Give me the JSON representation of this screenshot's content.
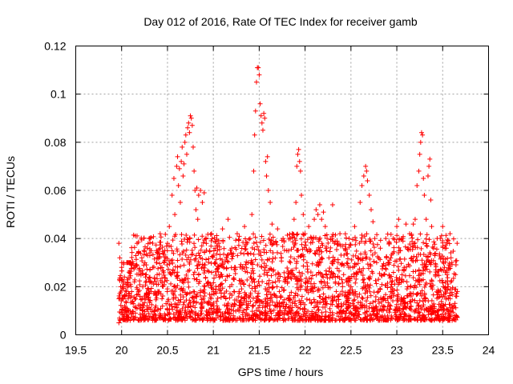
{
  "chart_data": {
    "type": "scatter",
    "title": "Day 012 of 2016, Rate Of TEC Index for receiver gamb",
    "xlabel": "GPS time / hours",
    "ylabel": "ROTI / TECUs",
    "xlim": [
      19.5,
      24
    ],
    "ylim": [
      0,
      0.12
    ],
    "xticks": [
      19.5,
      20,
      20.5,
      21,
      21.5,
      22,
      22.5,
      23,
      23.5,
      24
    ],
    "xtick_labels": [
      "19.5",
      "20",
      "20.5",
      "21",
      "21.5",
      "22",
      "22.5",
      "23",
      "23.5",
      "24"
    ],
    "yticks": [
      0,
      0.02,
      0.04,
      0.06,
      0.08,
      0.1,
      0.12
    ],
    "ytick_labels": [
      "0",
      "0.02",
      "0.04",
      "0.06",
      "0.08",
      "0.1",
      "0.12"
    ],
    "grid": true,
    "marker": "+",
    "series": [
      {
        "name": "ROTI",
        "color": "#ff0000",
        "points": [
          [
            19.97,
            0.038
          ],
          [
            19.97,
            0.005
          ],
          [
            19.98,
            0.032
          ],
          [
            19.99,
            0.02
          ],
          [
            20.0,
            0.028
          ],
          [
            20.02,
            0.015
          ],
          [
            20.03,
            0.024
          ],
          [
            20.05,
            0.018
          ],
          [
            20.06,
            0.011
          ],
          [
            20.08,
            0.026
          ],
          [
            20.1,
            0.03
          ],
          [
            20.12,
            0.014
          ],
          [
            20.14,
            0.022
          ],
          [
            20.15,
            0.009
          ],
          [
            20.17,
            0.019
          ],
          [
            20.19,
            0.027
          ],
          [
            20.2,
            0.016
          ],
          [
            20.22,
            0.032
          ],
          [
            20.24,
            0.012
          ],
          [
            20.26,
            0.024
          ],
          [
            20.28,
            0.036
          ],
          [
            20.3,
            0.04
          ],
          [
            20.32,
            0.018
          ],
          [
            20.34,
            0.028
          ],
          [
            20.36,
            0.01
          ],
          [
            20.38,
            0.035
          ],
          [
            20.4,
            0.021
          ],
          [
            20.42,
            0.042
          ],
          [
            20.44,
            0.015
          ],
          [
            20.46,
            0.03
          ],
          [
            20.48,
            0.008
          ],
          [
            20.5,
            0.038
          ],
          [
            20.52,
            0.045
          ],
          [
            20.54,
            0.025
          ],
          [
            20.55,
            0.058
          ],
          [
            20.57,
            0.065
          ],
          [
            20.58,
            0.05
          ],
          [
            20.6,
            0.07
          ],
          [
            20.61,
            0.074
          ],
          [
            20.62,
            0.062
          ],
          [
            20.63,
            0.069
          ],
          [
            20.64,
            0.055
          ],
          [
            20.65,
            0.072
          ],
          [
            20.66,
            0.078
          ],
          [
            20.67,
            0.066
          ],
          [
            20.68,
            0.071
          ],
          [
            20.69,
            0.08
          ],
          [
            20.7,
            0.083
          ],
          [
            20.71,
            0.075
          ],
          [
            20.72,
            0.086
          ],
          [
            20.73,
            0.088
          ],
          [
            20.74,
            0.084
          ],
          [
            20.75,
            0.091
          ],
          [
            20.76,
            0.09
          ],
          [
            20.77,
            0.087
          ],
          [
            20.78,
            0.078
          ],
          [
            20.79,
            0.068
          ],
          [
            20.8,
            0.06
          ],
          [
            20.81,
            0.052
          ],
          [
            20.82,
            0.061
          ],
          [
            20.83,
            0.048
          ],
          [
            20.84,
            0.058
          ],
          [
            20.86,
            0.06
          ],
          [
            20.88,
            0.055
          ],
          [
            20.9,
            0.059
          ],
          [
            20.92,
            0.04
          ],
          [
            20.94,
            0.022
          ],
          [
            20.96,
            0.035
          ],
          [
            20.98,
            0.042
          ],
          [
            21.0,
            0.018
          ],
          [
            21.02,
            0.03
          ],
          [
            21.04,
            0.012
          ],
          [
            21.06,
            0.038
          ],
          [
            21.08,
            0.025
          ],
          [
            21.1,
            0.044
          ],
          [
            21.12,
            0.016
          ],
          [
            21.14,
            0.032
          ],
          [
            21.16,
            0.048
          ],
          [
            21.18,
            0.02
          ],
          [
            21.2,
            0.036
          ],
          [
            21.22,
            0.01
          ],
          [
            21.24,
            0.028
          ],
          [
            21.26,
            0.042
          ],
          [
            21.28,
            0.018
          ],
          [
            21.3,
            0.034
          ],
          [
            21.32,
            0.022
          ],
          [
            21.34,
            0.045
          ],
          [
            21.36,
            0.014
          ],
          [
            21.38,
            0.03
          ],
          [
            21.4,
            0.04
          ],
          [
            21.42,
            0.05
          ],
          [
            21.44,
            0.068
          ],
          [
            21.45,
            0.083
          ],
          [
            21.46,
            0.093
          ],
          [
            21.47,
            0.105
          ],
          [
            21.48,
            0.111
          ],
          [
            21.49,
            0.111
          ],
          [
            21.5,
            0.108
          ],
          [
            21.51,
            0.096
          ],
          [
            21.52,
            0.091
          ],
          [
            21.53,
            0.088
          ],
          [
            21.54,
            0.085
          ],
          [
            21.55,
            0.092
          ],
          [
            21.56,
            0.09
          ],
          [
            21.57,
            0.072
          ],
          [
            21.58,
            0.066
          ],
          [
            21.59,
            0.074
          ],
          [
            21.6,
            0.06
          ],
          [
            21.62,
            0.055
          ],
          [
            21.64,
            0.046
          ],
          [
            21.66,
            0.038
          ],
          [
            21.68,
            0.025
          ],
          [
            21.7,
            0.044
          ],
          [
            21.72,
            0.018
          ],
          [
            21.74,
            0.032
          ],
          [
            21.76,
            0.04
          ],
          [
            21.78,
            0.022
          ],
          [
            21.8,
            0.035
          ],
          [
            21.82,
            0.015
          ],
          [
            21.84,
            0.03
          ],
          [
            21.86,
            0.042
          ],
          [
            21.88,
            0.048
          ],
          [
            21.9,
            0.055
          ],
          [
            21.91,
            0.07
          ],
          [
            21.92,
            0.075
          ],
          [
            21.93,
            0.077
          ],
          [
            21.94,
            0.072
          ],
          [
            21.95,
            0.068
          ],
          [
            21.96,
            0.058
          ],
          [
            21.98,
            0.05
          ],
          [
            22.0,
            0.042
          ],
          [
            22.02,
            0.03
          ],
          [
            22.04,
            0.045
          ],
          [
            22.06,
            0.035
          ],
          [
            22.08,
            0.02
          ],
          [
            22.1,
            0.048
          ],
          [
            22.12,
            0.052
          ],
          [
            22.14,
            0.05
          ],
          [
            22.16,
            0.054
          ],
          [
            22.18,
            0.048
          ],
          [
            22.2,
            0.051
          ],
          [
            22.22,
            0.045
          ],
          [
            22.24,
            0.04
          ],
          [
            22.26,
            0.032
          ],
          [
            22.28,
            0.025
          ],
          [
            22.3,
            0.054
          ],
          [
            22.32,
            0.038
          ],
          [
            22.34,
            0.018
          ],
          [
            22.36,
            0.03
          ],
          [
            22.38,
            0.042
          ],
          [
            22.4,
            0.012
          ],
          [
            22.42,
            0.025
          ],
          [
            22.44,
            0.035
          ],
          [
            22.46,
            0.015
          ],
          [
            22.48,
            0.04
          ],
          [
            22.5,
            0.02
          ],
          [
            22.52,
            0.028
          ],
          [
            22.54,
            0.045
          ],
          [
            22.56,
            0.01
          ],
          [
            22.58,
            0.032
          ],
          [
            22.6,
            0.055
          ],
          [
            22.62,
            0.062
          ],
          [
            22.64,
            0.066
          ],
          [
            22.66,
            0.07
          ],
          [
            22.67,
            0.068
          ],
          [
            22.68,
            0.064
          ],
          [
            22.7,
            0.058
          ],
          [
            22.72,
            0.052
          ],
          [
            22.74,
            0.047
          ],
          [
            22.76,
            0.04
          ],
          [
            22.78,
            0.03
          ],
          [
            22.8,
            0.018
          ],
          [
            22.82,
            0.036
          ],
          [
            22.84,
            0.012
          ],
          [
            22.86,
            0.025
          ],
          [
            22.88,
            0.04
          ],
          [
            22.9,
            0.015
          ],
          [
            22.92,
            0.03
          ],
          [
            22.94,
            0.022
          ],
          [
            22.96,
            0.04
          ],
          [
            22.98,
            0.01
          ],
          [
            23.0,
            0.045
          ],
          [
            23.02,
            0.048
          ],
          [
            23.04,
            0.035
          ],
          [
            23.06,
            0.04
          ],
          [
            23.08,
            0.028
          ],
          [
            23.1,
            0.046
          ],
          [
            23.12,
            0.02
          ],
          [
            23.14,
            0.042
          ],
          [
            23.16,
            0.032
          ],
          [
            23.18,
            0.046
          ],
          [
            23.2,
            0.048
          ],
          [
            23.22,
            0.062
          ],
          [
            23.24,
            0.068
          ],
          [
            23.25,
            0.075
          ],
          [
            23.26,
            0.08
          ],
          [
            23.27,
            0.084
          ],
          [
            23.28,
            0.083
          ],
          [
            23.29,
            0.065
          ],
          [
            23.3,
            0.058
          ],
          [
            23.32,
            0.048
          ],
          [
            23.34,
            0.066
          ],
          [
            23.35,
            0.07
          ],
          [
            23.36,
            0.073
          ],
          [
            23.37,
            0.056
          ],
          [
            23.38,
            0.045
          ],
          [
            23.4,
            0.036
          ],
          [
            23.42,
            0.025
          ],
          [
            23.44,
            0.04
          ],
          [
            23.46,
            0.018
          ],
          [
            23.48,
            0.032
          ],
          [
            23.5,
            0.045
          ],
          [
            23.52,
            0.028
          ],
          [
            23.54,
            0.036
          ],
          [
            23.56,
            0.02
          ],
          [
            23.58,
            0.042
          ],
          [
            23.6,
            0.03
          ],
          [
            23.62,
            0.012
          ],
          [
            23.64,
            0.025
          ],
          [
            23.66,
            0.018
          ]
        ]
      }
    ]
  }
}
